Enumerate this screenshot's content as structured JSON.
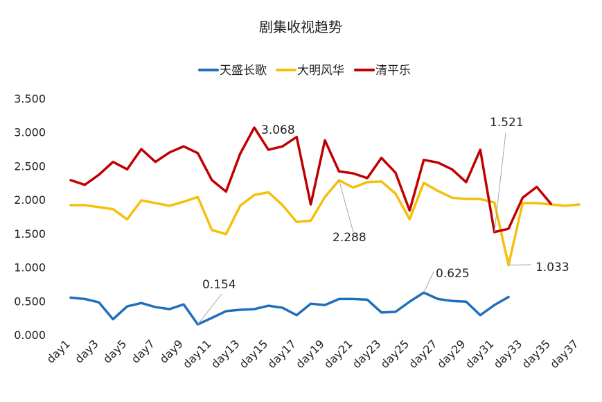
{
  "chart_data": {
    "type": "line",
    "title": "剧集收视趋势",
    "xlabel": "",
    "ylabel": "",
    "ylim": [
      0,
      3.5
    ],
    "yticks": [
      "0.000",
      "0.500",
      "1.000",
      "1.500",
      "2.000",
      "2.500",
      "3.000",
      "3.500"
    ],
    "x": [
      "day1",
      "day2",
      "day3",
      "day4",
      "day5",
      "day6",
      "day7",
      "day8",
      "day9",
      "day10",
      "day11",
      "day12",
      "day13",
      "day14",
      "day15",
      "day16",
      "day17",
      "day18",
      "day19",
      "day20",
      "day21",
      "day22",
      "day23",
      "day24",
      "day25",
      "day26",
      "day27",
      "day28",
      "day29",
      "day30",
      "day31",
      "day32",
      "day33",
      "day34",
      "day35",
      "day36",
      "day37"
    ],
    "xtick_labels": [
      "day1",
      "day3",
      "day5",
      "day7",
      "day9",
      "day11",
      "day13",
      "day15",
      "day17",
      "day19",
      "day21",
      "day23",
      "day25",
      "day27",
      "day29",
      "day31",
      "day33",
      "day35",
      "day37"
    ],
    "grid": false,
    "legend_position": "top",
    "series": [
      {
        "name": "天盛长歌",
        "color": "#1f6fba",
        "values": [
          0.55,
          0.53,
          0.48,
          0.23,
          0.42,
          0.47,
          0.41,
          0.38,
          0.45,
          0.154,
          0.25,
          0.35,
          0.37,
          0.38,
          0.43,
          0.4,
          0.29,
          0.46,
          0.44,
          0.53,
          0.53,
          0.52,
          0.33,
          0.34,
          0.49,
          0.625,
          0.53,
          0.5,
          0.49,
          0.29,
          0.44,
          0.56,
          null,
          null,
          null,
          null,
          null
        ]
      },
      {
        "name": "大明风华",
        "color": "#f5bf0a",
        "values": [
          1.92,
          1.92,
          1.89,
          1.86,
          1.71,
          1.99,
          1.95,
          1.91,
          1.97,
          2.04,
          1.55,
          1.49,
          1.91,
          2.07,
          2.11,
          1.92,
          1.67,
          1.69,
          2.04,
          2.288,
          2.18,
          2.26,
          2.27,
          2.09,
          1.71,
          2.25,
          2.13,
          2.03,
          2.01,
          2.01,
          1.96,
          1.033,
          1.95,
          1.95,
          1.93,
          1.91,
          1.93
        ]
      },
      {
        "name": "清平乐",
        "color": "#c00000",
        "values": [
          2.29,
          2.22,
          2.37,
          2.56,
          2.45,
          2.75,
          2.56,
          2.7,
          2.79,
          2.69,
          2.29,
          2.12,
          2.68,
          3.068,
          2.74,
          2.79,
          2.93,
          1.93,
          2.88,
          2.42,
          2.39,
          2.32,
          2.62,
          2.4,
          1.84,
          2.59,
          2.55,
          2.45,
          2.26,
          2.74,
          1.521,
          1.57,
          2.03,
          2.19,
          1.94,
          null,
          null
        ]
      }
    ],
    "annotations": [
      {
        "text": "3.068",
        "series": 2,
        "x": "day14"
      },
      {
        "text": "2.288",
        "series": 1,
        "x": "day20"
      },
      {
        "text": "1.521",
        "series": 2,
        "x": "day31"
      },
      {
        "text": "1.033",
        "series": 1,
        "x": "day32"
      },
      {
        "text": "0.154",
        "series": 0,
        "x": "day10"
      },
      {
        "text": "0.625",
        "series": 0,
        "x": "day26"
      }
    ]
  }
}
